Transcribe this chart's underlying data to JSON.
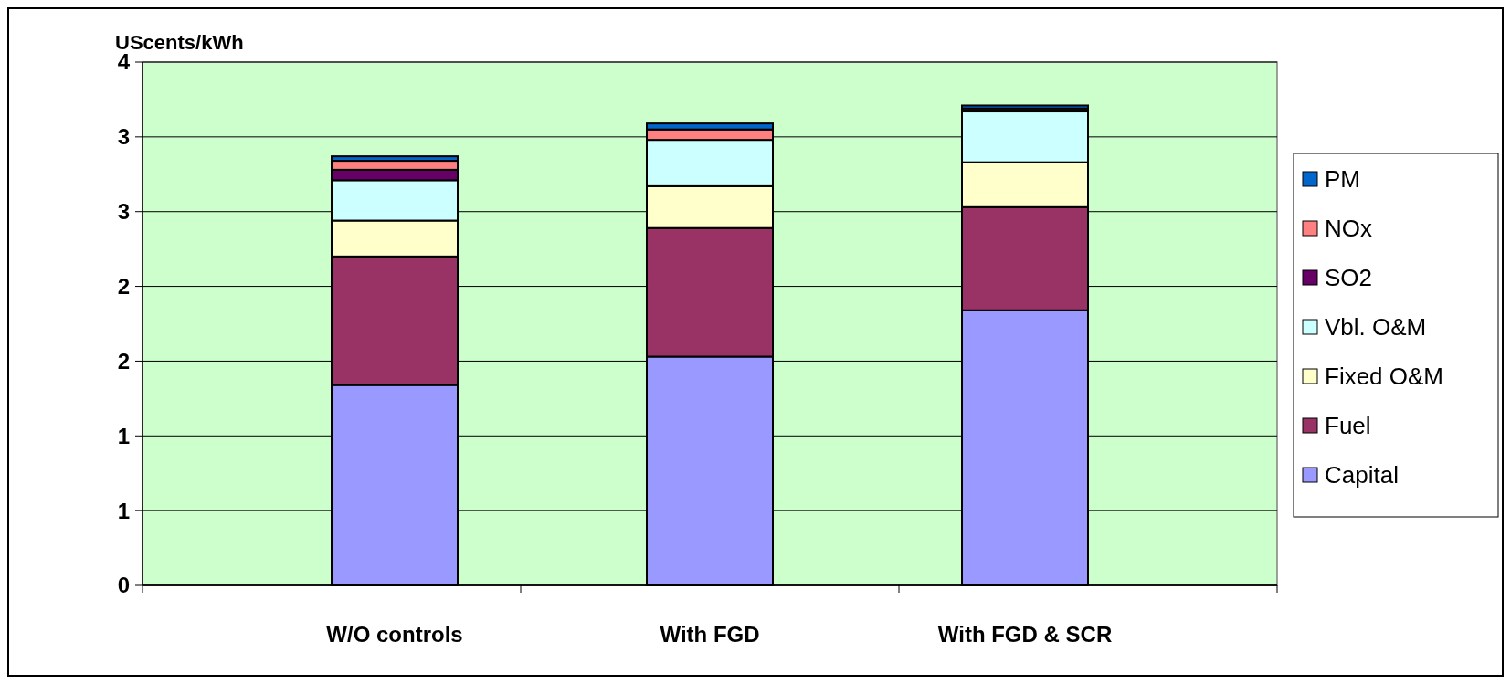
{
  "chart_data": {
    "type": "bar",
    "stacked": true,
    "ylabel": "UScents/kWh",
    "categories": [
      "W/O controls",
      "With FGD",
      "With FGD & SCR"
    ],
    "series": [
      {
        "name": "Capital",
        "color": "#9999ff",
        "values": [
          1.34,
          1.53,
          1.84
        ]
      },
      {
        "name": "Fuel",
        "color": "#993366",
        "values": [
          0.86,
          0.86,
          0.69
        ]
      },
      {
        "name": "Fixed O&M",
        "color": "#ffffcc",
        "values": [
          0.24,
          0.28,
          0.3
        ]
      },
      {
        "name": "Vbl. O&M",
        "color": "#ccffff",
        "values": [
          0.27,
          0.31,
          0.34
        ]
      },
      {
        "name": "SO2",
        "color": "#660066",
        "values": [
          0.07,
          null,
          null
        ]
      },
      {
        "name": "NOx",
        "color": "#ff8080",
        "values": [
          0.06,
          0.07,
          0.02
        ]
      },
      {
        "name": "PM",
        "color": "#0066cc",
        "values": [
          0.03,
          0.04,
          0.02
        ]
      }
    ],
    "ylim": [
      0,
      3.5
    ],
    "yticks": [
      {
        "value": 0,
        "label": "0"
      },
      {
        "value": 0.5,
        "label": "1"
      },
      {
        "value": 1,
        "label": "1"
      },
      {
        "value": 1.5,
        "label": "2"
      },
      {
        "value": 2,
        "label": "2"
      },
      {
        "value": 2.5,
        "label": "3"
      },
      {
        "value": 3,
        "label": "3"
      },
      {
        "value": 3.5,
        "label": "4"
      }
    ],
    "grid": "y",
    "legend": "right"
  }
}
